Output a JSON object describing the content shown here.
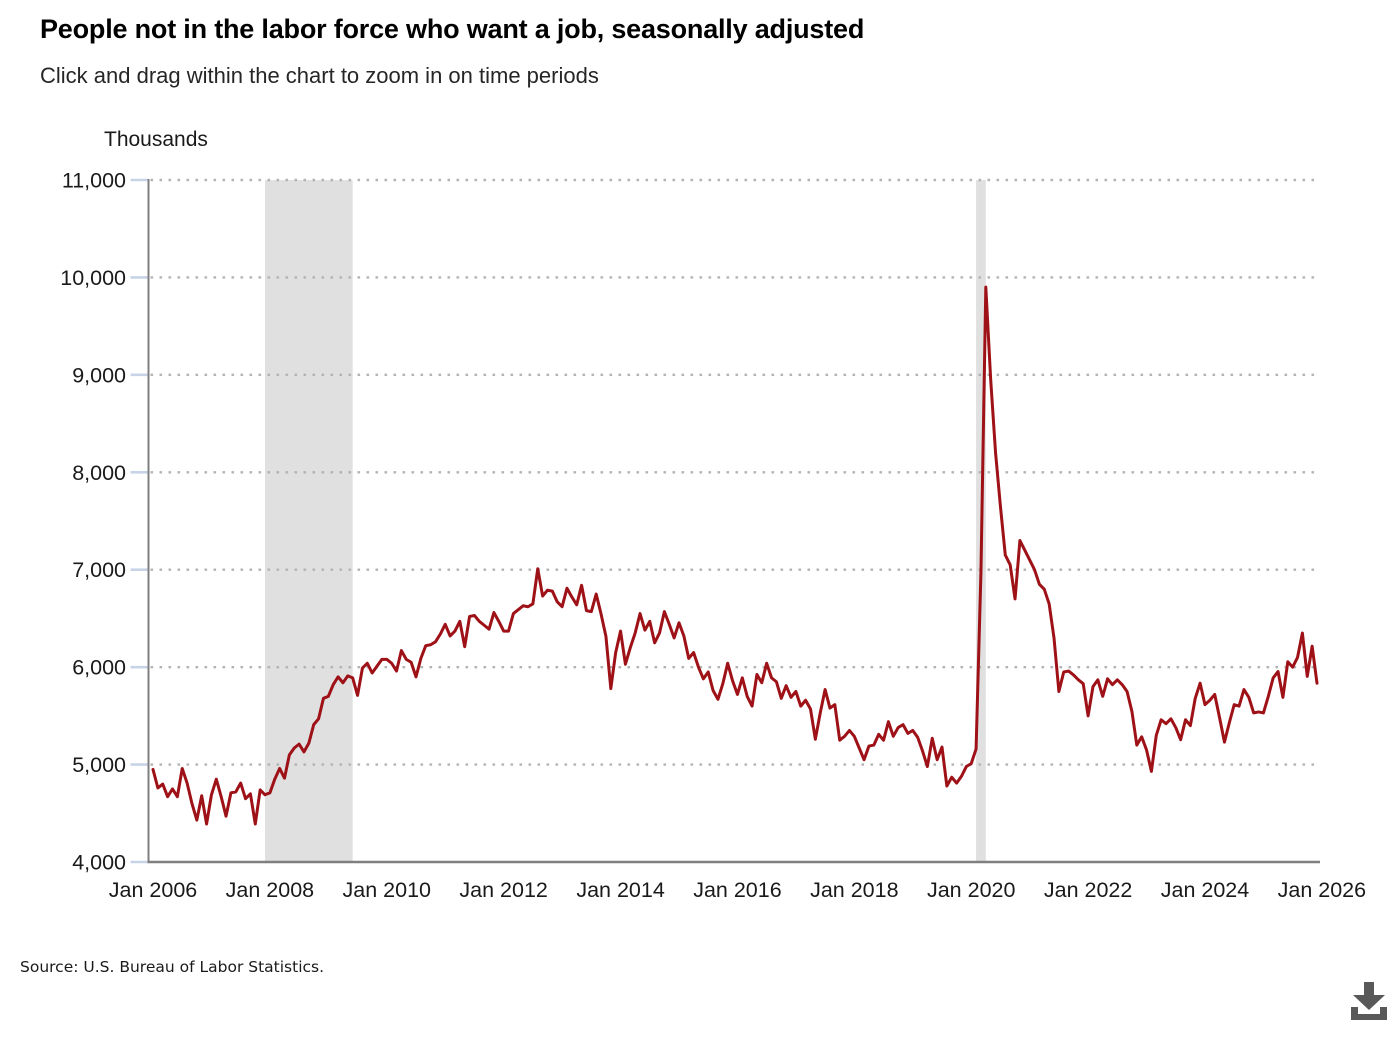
{
  "header": {
    "title": "People not in the labor force who want a job, seasonally adjusted",
    "subtitle": "Click and drag within the chart to zoom in on time periods"
  },
  "source": "Source: U.S. Bureau of Labor Statistics.",
  "download": {
    "label": "Download chart data"
  },
  "chart_data": {
    "type": "line",
    "title": "People not in the labor force who want a job, seasonally adjusted",
    "subtitle": "Click and drag within the chart to zoom in on time periods",
    "unit_label": "Thousands",
    "xlabel": "",
    "ylabel": "Thousands",
    "frequency": "monthly",
    "x_start": "Jan 2006",
    "x_end": "Dec 2025",
    "ylim": [
      4000,
      11000
    ],
    "grid": "dotted-horizontal",
    "legend": "none",
    "line_color": "#9e1117",
    "band_color": "#e0e0e0",
    "axis_color": "#7f7f7f",
    "grid_dot_color": "#b3b3b3",
    "tick_mark_color": "#c7d4e8",
    "x_tick_labels": [
      "Jan 2006",
      "Jan 2008",
      "Jan 2010",
      "Jan 2012",
      "Jan 2014",
      "Jan 2016",
      "Jan 2018",
      "Jan 2020",
      "Jan 2022",
      "Jan 2024",
      "Jan 2026"
    ],
    "y_ticks": [
      {
        "value": 4000,
        "label": "4,000"
      },
      {
        "value": 5000,
        "label": "5,000"
      },
      {
        "value": 6000,
        "label": "6,000"
      },
      {
        "value": 7000,
        "label": "7,000"
      },
      {
        "value": 8000,
        "label": "8,000"
      },
      {
        "value": 9000,
        "label": "9,000"
      },
      {
        "value": 10000,
        "label": "10,000"
      },
      {
        "value": 11000,
        "label": "11,000"
      }
    ],
    "recession_bands": [
      {
        "from_month_index": 23,
        "to_month_index": 41
      },
      {
        "from_month_index": 169,
        "to_month_index": 171
      }
    ],
    "series": [
      {
        "name": "People not in the labor force who want a job, seasonally adjusted (thousands)",
        "values": [
          4950,
          4760,
          4800,
          4670,
          4750,
          4670,
          4960,
          4810,
          4600,
          4430,
          4680,
          4390,
          4690,
          4850,
          4670,
          4470,
          4710,
          4720,
          4810,
          4650,
          4700,
          4390,
          4740,
          4690,
          4710,
          4850,
          4960,
          4860,
          5100,
          5170,
          5210,
          5130,
          5220,
          5410,
          5470,
          5680,
          5700,
          5820,
          5900,
          5840,
          5910,
          5890,
          5710,
          5990,
          6040,
          5940,
          6010,
          6080,
          6080,
          6040,
          5960,
          6170,
          6080,
          6050,
          5900,
          6090,
          6220,
          6230,
          6260,
          6340,
          6440,
          6320,
          6370,
          6470,
          6210,
          6520,
          6530,
          6470,
          6430,
          6390,
          6560,
          6470,
          6370,
          6370,
          6550,
          6590,
          6630,
          6620,
          6650,
          7010,
          6730,
          6790,
          6780,
          6670,
          6620,
          6810,
          6720,
          6640,
          6840,
          6580,
          6570,
          6750,
          6545,
          6315,
          5780,
          6150,
          6370,
          6030,
          6200,
          6350,
          6550,
          6380,
          6470,
          6250,
          6350,
          6570,
          6440,
          6300,
          6455,
          6320,
          6090,
          6150,
          6000,
          5880,
          5950,
          5760,
          5670,
          5830,
          6040,
          5860,
          5720,
          5890,
          5700,
          5600,
          5925,
          5840,
          6040,
          5890,
          5850,
          5680,
          5810,
          5690,
          5750,
          5600,
          5660,
          5570,
          5260,
          5530,
          5770,
          5580,
          5615,
          5250,
          5290,
          5350,
          5290,
          5170,
          5050,
          5190,
          5200,
          5310,
          5250,
          5440,
          5290,
          5380,
          5410,
          5320,
          5350,
          5280,
          5140,
          4980,
          5270,
          5050,
          5180,
          4780,
          4870,
          4810,
          4880,
          4980,
          5010,
          5160,
          6980,
          9900,
          8950,
          8200,
          7650,
          7150,
          7050,
          6700,
          7300,
          7200,
          7100,
          7000,
          6850,
          6800,
          6650,
          6300,
          5750,
          5950,
          5960,
          5920,
          5870,
          5830,
          5500,
          5800,
          5870,
          5700,
          5880,
          5820,
          5870,
          5820,
          5750,
          5545,
          5200,
          5285,
          5150,
          4930,
          5300,
          5460,
          5420,
          5470,
          5380,
          5255,
          5460,
          5400,
          5680,
          5835,
          5615,
          5660,
          5720,
          5480,
          5230,
          5430,
          5615,
          5600,
          5770,
          5690,
          5530,
          5540,
          5530,
          5700,
          5890,
          5955,
          5690,
          6055,
          6000,
          6100,
          6350,
          5905,
          6215,
          5835
        ]
      }
    ]
  }
}
